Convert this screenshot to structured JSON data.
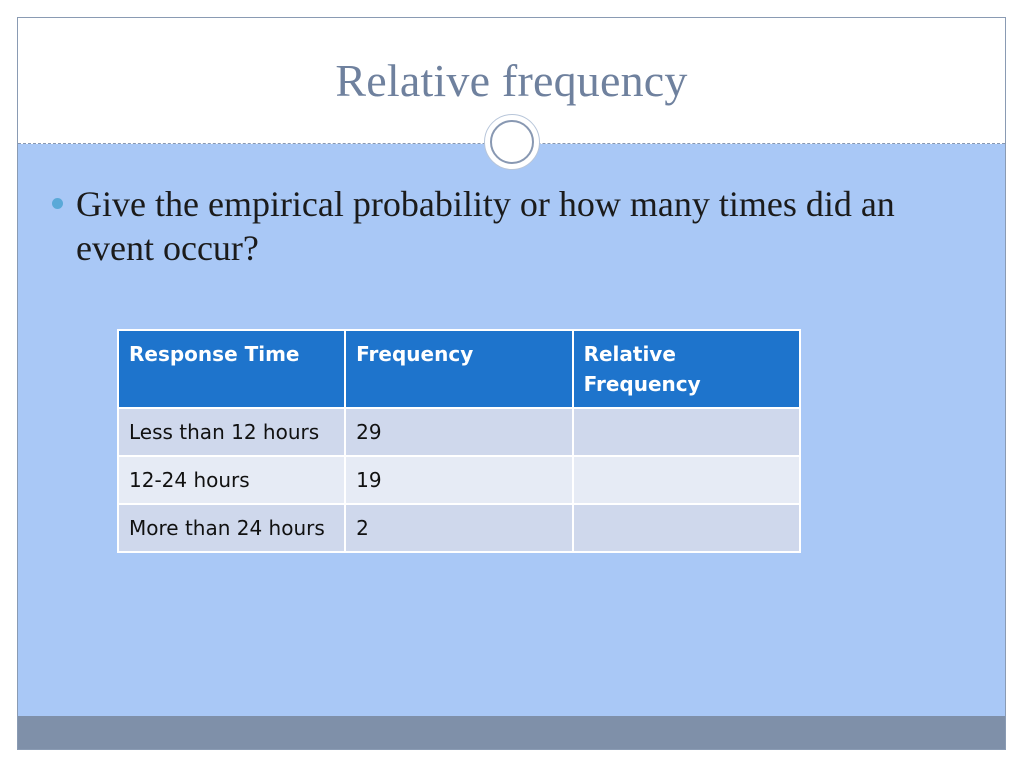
{
  "slide": {
    "title": "Relative frequency",
    "bullets": [
      "Give the empirical probability or how many times did an event occur?"
    ]
  },
  "table": {
    "headers": [
      "Response Time",
      "Frequency",
      "Relative Frequency"
    ],
    "rows": [
      [
        "Less than 12 hours",
        "29",
        ""
      ],
      [
        "12-24 hours",
        "19",
        ""
      ],
      [
        "More than 24 hours",
        "2",
        ""
      ]
    ]
  },
  "colors": {
    "title": "#6f819e",
    "content_background": "#a9c8f6",
    "table_header": "#1e74cc",
    "row_dark": "#cfd8ec",
    "row_light": "#e6ebf5",
    "footer": "#7f90a9",
    "bullet": "#5aa9d8"
  },
  "icons": [
    "bullet-dot-icon",
    "ring-ornament-icon"
  ]
}
